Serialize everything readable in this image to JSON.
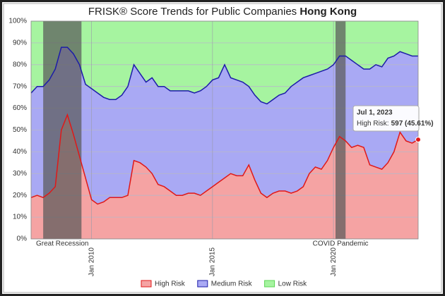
{
  "chart_data": {
    "type": "stacked_area",
    "title": "FRISK® Score Trends for Public Companies",
    "title_emphasis": "Hong Kong",
    "x": [
      "2007-07",
      "2007-10",
      "2008-01",
      "2008-04",
      "2008-07",
      "2008-10",
      "2009-01",
      "2009-04",
      "2009-07",
      "2009-10",
      "2010-01",
      "2010-04",
      "2010-07",
      "2010-10",
      "2011-01",
      "2011-04",
      "2011-07",
      "2011-10",
      "2012-01",
      "2012-04",
      "2012-07",
      "2012-10",
      "2013-01",
      "2013-04",
      "2013-07",
      "2013-10",
      "2014-01",
      "2014-04",
      "2014-07",
      "2014-10",
      "2015-01",
      "2015-04",
      "2015-07",
      "2015-10",
      "2016-01",
      "2016-04",
      "2016-07",
      "2016-10",
      "2017-01",
      "2017-04",
      "2017-07",
      "2017-10",
      "2018-01",
      "2018-04",
      "2018-07",
      "2018-10",
      "2019-01",
      "2019-04",
      "2019-07",
      "2019-10",
      "2020-01",
      "2020-04",
      "2020-07",
      "2020-10",
      "2021-01",
      "2021-04",
      "2021-07",
      "2021-10",
      "2022-01",
      "2022-04",
      "2022-07",
      "2022-10",
      "2023-01",
      "2023-04",
      "2023-07"
    ],
    "series": [
      {
        "name": "High Risk",
        "color": "#f5a3a3",
        "line_color": "#e01818",
        "values": [
          19,
          20,
          19,
          21,
          24,
          50,
          57,
          48,
          38,
          28,
          18,
          16,
          17,
          19,
          19,
          19,
          20,
          36,
          35,
          33,
          30,
          25,
          24,
          22,
          20,
          20,
          21,
          21,
          20,
          22,
          24,
          26,
          28,
          30,
          29,
          29,
          34,
          27,
          21,
          19,
          21,
          22,
          22,
          21,
          22,
          24,
          30,
          33,
          32,
          36,
          42,
          47,
          45,
          42,
          43,
          42,
          34,
          33,
          32,
          35,
          40,
          49,
          45,
          44,
          45.61
        ]
      },
      {
        "name": "Medium Risk",
        "color": "#a9a9f4",
        "line_color": "#1c1ca8",
        "values": [
          48,
          50,
          51,
          52,
          54,
          38,
          31,
          37,
          42,
          43,
          51,
          51,
          48,
          45,
          45,
          47,
          50,
          44,
          41,
          39,
          44,
          45,
          46,
          46,
          48,
          48,
          47,
          46,
          48,
          48,
          49,
          48,
          52,
          44,
          44,
          43,
          36,
          39,
          42,
          43,
          43,
          44,
          45,
          49,
          50,
          50,
          45,
          43,
          45,
          42,
          38,
          37,
          39,
          40,
          37,
          36,
          44,
          47,
          47,
          48,
          44,
          37,
          40,
          40,
          38.39
        ]
      },
      {
        "name": "Low Risk",
        "color": "#a6f4a0",
        "line_color": "#5cd455",
        "values": [
          33,
          30,
          30,
          27,
          22,
          12,
          12,
          15,
          20,
          29,
          31,
          33,
          35,
          36,
          36,
          34,
          30,
          20,
          24,
          28,
          26,
          30,
          30,
          32,
          32,
          32,
          32,
          33,
          32,
          30,
          27,
          26,
          20,
          26,
          27,
          28,
          30,
          34,
          37,
          38,
          36,
          34,
          33,
          30,
          28,
          26,
          25,
          24,
          23,
          22,
          20,
          16,
          16,
          18,
          20,
          22,
          22,
          20,
          21,
          17,
          16,
          14,
          15,
          16,
          16
        ]
      }
    ],
    "xlim": [
      "2007-07",
      "2023-07"
    ],
    "xticks": [
      {
        "value": "2010-01",
        "label": "Jan 2010"
      },
      {
        "value": "2015-01",
        "label": "Jan 2015"
      },
      {
        "value": "2020-01",
        "label": "Jan 2020"
      }
    ],
    "ylim": [
      0,
      100
    ],
    "yticks": [
      {
        "value": 0,
        "label": "0%"
      },
      {
        "value": 10,
        "label": "10%"
      },
      {
        "value": 20,
        "label": "20%"
      },
      {
        "value": 30,
        "label": "30%"
      },
      {
        "value": 40,
        "label": "40%"
      },
      {
        "value": 50,
        "label": "50%"
      },
      {
        "value": 60,
        "label": "60%"
      },
      {
        "value": 70,
        "label": "70%"
      },
      {
        "value": 80,
        "label": "80%"
      },
      {
        "value": 90,
        "label": "90%"
      },
      {
        "value": 100,
        "label": "100%"
      }
    ],
    "grid": true,
    "legend": "bottom",
    "bands": [
      {
        "label": "Great Recession",
        "start": "2008-01",
        "end": "2009-08",
        "color": "#5a5a5a"
      },
      {
        "label": "COVID Pandemic",
        "start": "2020-02",
        "end": "2020-07",
        "color": "#5a5a5a"
      }
    ],
    "tooltip": {
      "date": "Jul 1, 2023",
      "label": "High Risk:",
      "value": "597 (45.61%)"
    }
  }
}
